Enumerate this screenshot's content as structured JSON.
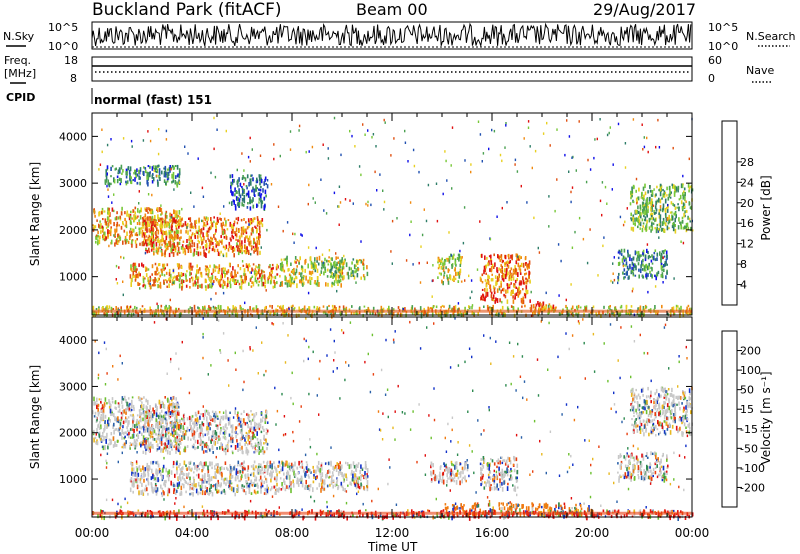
{
  "header": {
    "title": "Buckland Park (fitACF)",
    "beam": "Beam 00",
    "date": "29/Aug/2017"
  },
  "noise_panel": {
    "left_label": "N.Sky",
    "right_label": "N.Search",
    "left_ticks": [
      "10^5",
      "10^0"
    ],
    "right_ticks": [
      "10^5",
      "10^0"
    ]
  },
  "freq_panel": {
    "left_label_1": "Freq.",
    "left_label_2": "[MHz]",
    "right_label": "Nave",
    "left_ticks": [
      "18",
      "8"
    ],
    "right_ticks": [
      "60",
      "0"
    ]
  },
  "cpid_panel": {
    "label": "CPID",
    "text": "normal (fast) 151"
  },
  "chart_data": [
    {
      "type": "heatmap",
      "title": "",
      "ylabel": "Slant Range [km]",
      "xlabel": "Time UT",
      "ylim": [
        180,
        4500
      ],
      "yticks": [
        "1000",
        "2000",
        "3000",
        "4000"
      ],
      "xticks": [
        "00:00",
        "04:00",
        "08:00",
        "12:00",
        "16:00",
        "20:00",
        "00:00"
      ],
      "colorbar": {
        "label": "Power [dB]",
        "ticks": [
          "4",
          "8",
          "12",
          "16",
          "20",
          "24",
          "28"
        ],
        "colors": [
          "#1010e8",
          "#2050b0",
          "#2e7d68",
          "#4aa050",
          "#78c838",
          "#e8d020",
          "#f08a10",
          "#e05010",
          "#e01010"
        ]
      },
      "regions": [
        {
          "t0": 0.0,
          "t1": 3.5,
          "r0": 1700,
          "r1": 2500,
          "level": 0.68
        },
        {
          "t0": 2.0,
          "t1": 6.8,
          "r0": 1500,
          "r1": 2300,
          "level": 0.75
        },
        {
          "t0": 1.5,
          "t1": 7.5,
          "r0": 800,
          "r1": 1300,
          "level": 0.7
        },
        {
          "t0": 7.5,
          "t1": 10.0,
          "r0": 850,
          "r1": 1450,
          "level": 0.55
        },
        {
          "t0": 9.5,
          "t1": 11.0,
          "r0": 1000,
          "r1": 1400,
          "level": 0.5
        },
        {
          "t0": 13.8,
          "t1": 14.8,
          "r0": 900,
          "r1": 1500,
          "level": 0.55
        },
        {
          "t0": 15.5,
          "t1": 17.5,
          "r0": 500,
          "r1": 1500,
          "level": 0.78
        },
        {
          "t0": 17.5,
          "t1": 18.5,
          "r0": 300,
          "r1": 500,
          "level": 0.88
        },
        {
          "t0": 0.0,
          "t1": 24.0,
          "r0": 200,
          "r1": 400,
          "level": 0.6
        },
        {
          "t0": 21.5,
          "t1": 24.0,
          "r0": 2000,
          "r1": 3000,
          "level": 0.45
        },
        {
          "t0": 21.0,
          "t1": 23.0,
          "r0": 1000,
          "r1": 1600,
          "level": 0.3
        },
        {
          "t0": 0.5,
          "t1": 3.5,
          "r0": 3000,
          "r1": 3400,
          "level": 0.3
        },
        {
          "t0": 5.5,
          "t1": 7.0,
          "r0": 2500,
          "r1": 3200,
          "level": 0.2
        }
      ]
    },
    {
      "type": "heatmap",
      "title": "",
      "ylabel": "Slant Range [km]",
      "xlabel": "Time UT",
      "ylim": [
        180,
        4500
      ],
      "yticks": [
        "1000",
        "2000",
        "3000",
        "4000"
      ],
      "xticks": [
        "00:00",
        "04:00",
        "08:00",
        "12:00",
        "16:00",
        "20:00",
        "00:00"
      ],
      "colorbar": {
        "label": "Velocity [m s⁻¹]",
        "ticks": [
          "200",
          "100",
          "50",
          "15",
          "-15",
          "-50",
          "-100",
          "-200"
        ],
        "colors": [
          "#1030c8",
          "#2a60a8",
          "#2e8a50",
          "#6cc030",
          "#c8c8c8",
          "#e8b820",
          "#f07a10",
          "#e84010",
          "#e01010"
        ]
      },
      "regions": [
        {
          "t0": 0.0,
          "t1": 3.5,
          "r0": 1700,
          "r1": 2800,
          "level": 0.5
        },
        {
          "t0": 2.0,
          "t1": 7.0,
          "r0": 1600,
          "r1": 2500,
          "level": 0.5
        },
        {
          "t0": 1.5,
          "t1": 7.5,
          "r0": 700,
          "r1": 1400,
          "level": 0.5
        },
        {
          "t0": 7.5,
          "t1": 11.0,
          "r0": 800,
          "r1": 1400,
          "level": 0.5
        },
        {
          "t0": 13.5,
          "t1": 15.0,
          "r0": 950,
          "r1": 1400,
          "level": 0.5
        },
        {
          "t0": 15.5,
          "t1": 17.0,
          "r0": 800,
          "r1": 1500,
          "level": 0.5
        },
        {
          "t0": 14.0,
          "t1": 20.0,
          "r0": 250,
          "r1": 500,
          "level": 0.75
        },
        {
          "t0": 0.0,
          "t1": 24.0,
          "r0": 200,
          "r1": 350,
          "level": 0.9
        },
        {
          "t0": 21.5,
          "t1": 24.0,
          "r0": 2000,
          "r1": 3000,
          "level": 0.48
        },
        {
          "t0": 21.0,
          "t1": 23.0,
          "r0": 1000,
          "r1": 1600,
          "level": 0.45
        }
      ]
    }
  ]
}
